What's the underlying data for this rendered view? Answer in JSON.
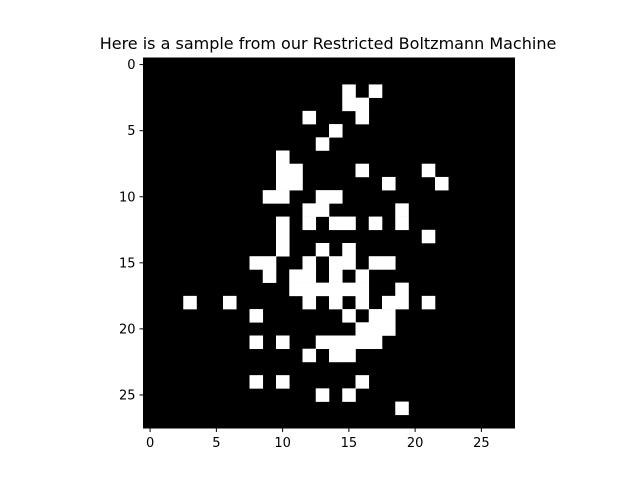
{
  "chart_data": {
    "type": "heatmap",
    "title": "Here is a sample from our Restricted Boltzmann Machine",
    "colormap": "gray",
    "colors": {
      "on": "#ffffff",
      "off": "#000000"
    },
    "grid": false,
    "xlabel": "",
    "ylabel": "",
    "rows": 28,
    "cols": 28,
    "x_ticks": [
      0,
      5,
      10,
      15,
      20,
      25
    ],
    "y_ticks": [
      0,
      5,
      10,
      15,
      20,
      25
    ],
    "xlim": [
      -0.5,
      27.5
    ],
    "ylim": [
      27.5,
      -0.5
    ],
    "on_cells": [
      [
        2,
        15
      ],
      [
        2,
        17
      ],
      [
        3,
        15
      ],
      [
        3,
        16
      ],
      [
        4,
        12
      ],
      [
        4,
        16
      ],
      [
        5,
        14
      ],
      [
        6,
        13
      ],
      [
        7,
        10
      ],
      [
        8,
        10
      ],
      [
        8,
        11
      ],
      [
        8,
        16
      ],
      [
        8,
        21
      ],
      [
        9,
        10
      ],
      [
        9,
        11
      ],
      [
        9,
        18
      ],
      [
        9,
        22
      ],
      [
        10,
        9
      ],
      [
        10,
        10
      ],
      [
        10,
        13
      ],
      [
        10,
        14
      ],
      [
        11,
        12
      ],
      [
        11,
        13
      ],
      [
        11,
        19
      ],
      [
        12,
        10
      ],
      [
        12,
        12
      ],
      [
        12,
        14
      ],
      [
        12,
        15
      ],
      [
        12,
        17
      ],
      [
        12,
        19
      ],
      [
        13,
        10
      ],
      [
        13,
        21
      ],
      [
        14,
        10
      ],
      [
        14,
        13
      ],
      [
        14,
        15
      ],
      [
        15,
        8
      ],
      [
        15,
        9
      ],
      [
        15,
        12
      ],
      [
        15,
        14
      ],
      [
        15,
        15
      ],
      [
        15,
        17
      ],
      [
        15,
        18
      ],
      [
        16,
        9
      ],
      [
        16,
        11
      ],
      [
        16,
        12
      ],
      [
        16,
        14
      ],
      [
        16,
        16
      ],
      [
        17,
        11
      ],
      [
        17,
        12
      ],
      [
        17,
        13
      ],
      [
        17,
        14
      ],
      [
        17,
        15
      ],
      [
        17,
        16
      ],
      [
        17,
        19
      ],
      [
        18,
        3
      ],
      [
        18,
        6
      ],
      [
        18,
        12
      ],
      [
        18,
        14
      ],
      [
        18,
        16
      ],
      [
        18,
        18
      ],
      [
        18,
        19
      ],
      [
        18,
        21
      ],
      [
        19,
        8
      ],
      [
        19,
        15
      ],
      [
        19,
        17
      ],
      [
        19,
        18
      ],
      [
        20,
        16
      ],
      [
        20,
        17
      ],
      [
        20,
        18
      ],
      [
        21,
        8
      ],
      [
        21,
        10
      ],
      [
        21,
        13
      ],
      [
        21,
        14
      ],
      [
        21,
        15
      ],
      [
        21,
        16
      ],
      [
        21,
        17
      ],
      [
        22,
        12
      ],
      [
        22,
        14
      ],
      [
        22,
        15
      ],
      [
        24,
        8
      ],
      [
        24,
        10
      ],
      [
        24,
        16
      ],
      [
        25,
        13
      ],
      [
        25,
        15
      ],
      [
        26,
        19
      ]
    ]
  }
}
